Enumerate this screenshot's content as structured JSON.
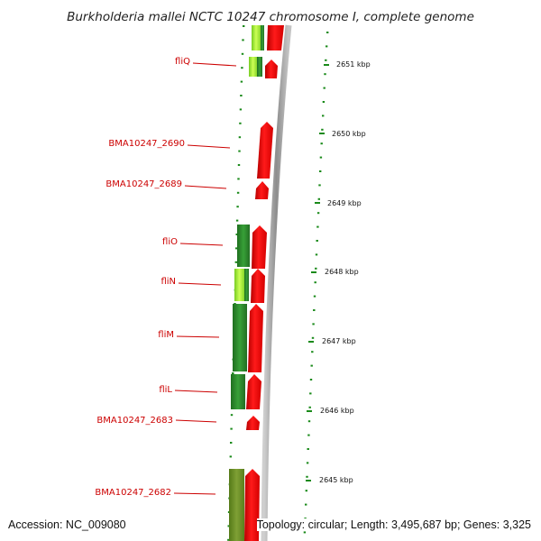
{
  "title": "Burkholderia mallei NCTC 10247 chromosome I, complete genome",
  "footer": {
    "accession": "Accession: NC_009080",
    "summary": "Topology: circular; Length: 3,495,687 bp; Genes: 3,325"
  },
  "genes": [
    {
      "label": "fliQ"
    },
    {
      "label": "BMA10247_2690"
    },
    {
      "label": "BMA10247_2689"
    },
    {
      "label": "fliO"
    },
    {
      "label": "fliN"
    },
    {
      "label": "fliM"
    },
    {
      "label": "fliL"
    },
    {
      "label": "BMA10247_2683"
    },
    {
      "label": "BMA10247_2682"
    }
  ],
  "kbp_ticks": [
    "2651 kbp",
    "2650 kbp",
    "2649 kbp",
    "2648 kbp",
    "2647 kbp",
    "2646 kbp",
    "2645 kbp"
  ],
  "colors": {
    "forward_strand": "#ff0000",
    "reverse_dark": "#2e8b2e",
    "reverse_light": "#99ee33",
    "reverse_olive": "#6b8e23",
    "backbone": "#9a9a9a",
    "gene_label": "#cc0000",
    "tick": "#1a8a1a"
  }
}
